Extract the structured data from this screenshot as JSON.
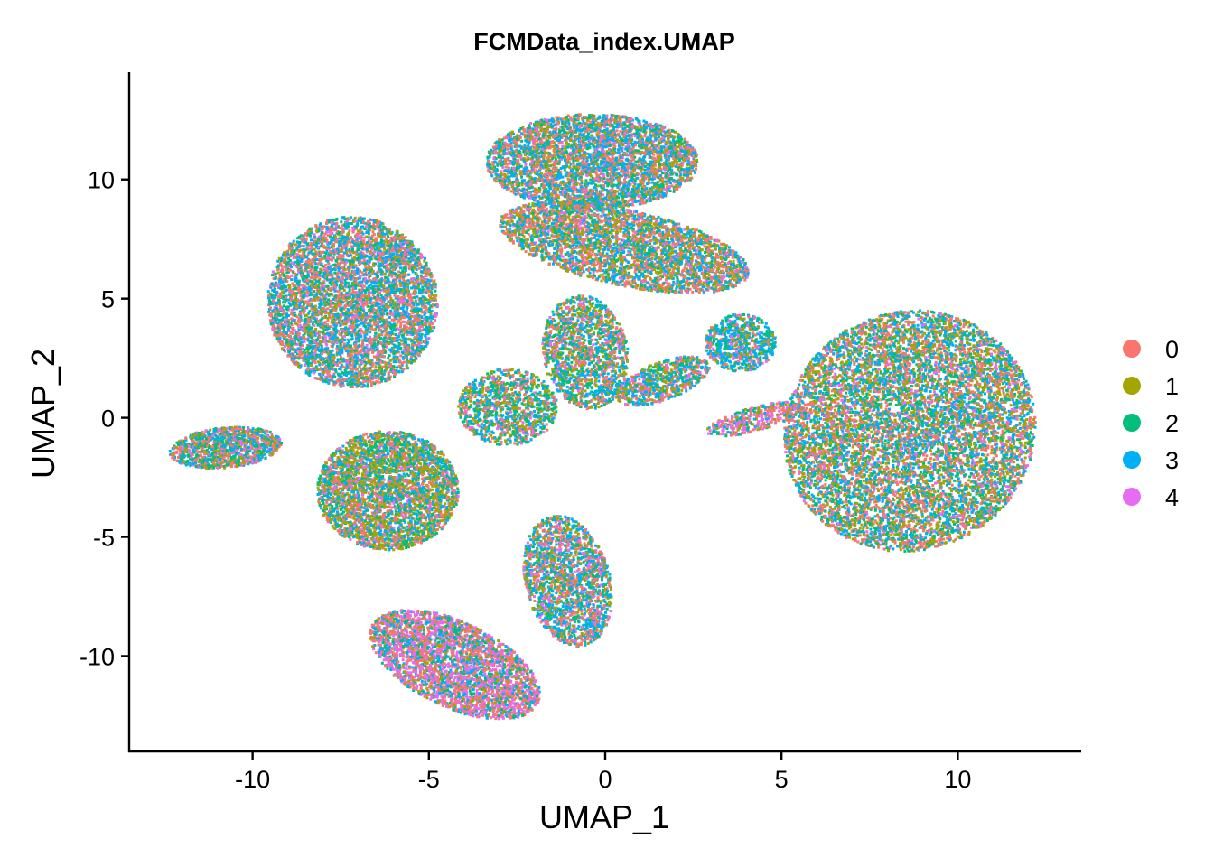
{
  "chart_data": {
    "type": "scatter",
    "title": "FCMData_index.UMAP",
    "xlabel": "UMAP_1",
    "ylabel": "UMAP_2",
    "xlim": [
      -13.5,
      13.5
    ],
    "ylim": [
      -14,
      14.5
    ],
    "x_ticks": [
      -10,
      -5,
      0,
      5,
      10
    ],
    "y_ticks": [
      -10,
      -5,
      0,
      5,
      10
    ],
    "grid": false,
    "legend_position": "right",
    "series": [
      {
        "name": "0",
        "color": "#F8766D"
      },
      {
        "name": "1",
        "color": "#A3A500"
      },
      {
        "name": "2",
        "color": "#00BF7D"
      },
      {
        "name": "3",
        "color": "#00B0F6"
      },
      {
        "name": "4",
        "color": "#E76BF3"
      }
    ],
    "clusters": [
      {
        "x": -7.2,
        "y": 4.9,
        "rx": 2.4,
        "ry": 3.6,
        "rot": 35,
        "weights": [
          0.3,
          0.12,
          0.2,
          0.3,
          0.08
        ],
        "n": 5200
      },
      {
        "x": -10.8,
        "y": -1.2,
        "rx": 1.6,
        "ry": 0.85,
        "rot": 5,
        "weights": [
          0.25,
          0.15,
          0.25,
          0.25,
          0.1
        ],
        "n": 1100
      },
      {
        "x": -6.2,
        "y": -3.0,
        "rx": 2.0,
        "ry": 2.5,
        "rot": 0,
        "weights": [
          0.18,
          0.3,
          0.22,
          0.2,
          0.1
        ],
        "n": 3600
      },
      {
        "x": -4.3,
        "y": -10.3,
        "rx": 2.6,
        "ry": 1.8,
        "rot": -25,
        "weights": [
          0.3,
          0.08,
          0.15,
          0.15,
          0.32
        ],
        "n": 3200
      },
      {
        "x": -1.1,
        "y": -6.8,
        "rx": 1.2,
        "ry": 2.8,
        "rot": 15,
        "weights": [
          0.25,
          0.15,
          0.2,
          0.28,
          0.12
        ],
        "n": 1900
      },
      {
        "x": -0.4,
        "y": 10.8,
        "rx": 3.0,
        "ry": 2.0,
        "rot": 0,
        "weights": [
          0.28,
          0.15,
          0.17,
          0.32,
          0.08
        ],
        "n": 4000
      },
      {
        "x": 0.5,
        "y": 7.2,
        "rx": 3.6,
        "ry": 1.6,
        "rot": -12,
        "weights": [
          0.3,
          0.22,
          0.15,
          0.25,
          0.08
        ],
        "n": 3600
      },
      {
        "x": 1.6,
        "y": 1.6,
        "rx": 1.4,
        "ry": 0.8,
        "rot": 20,
        "weights": [
          0.2,
          0.18,
          0.2,
          0.32,
          0.1
        ],
        "n": 700
      },
      {
        "x": 3.8,
        "y": 3.2,
        "rx": 1.0,
        "ry": 1.2,
        "rot": 0,
        "weights": [
          0.15,
          0.1,
          0.25,
          0.42,
          0.08
        ],
        "n": 700
      },
      {
        "x": 8.6,
        "y": -0.5,
        "rx": 3.6,
        "ry": 5.0,
        "rot": 25,
        "weights": [
          0.25,
          0.22,
          0.2,
          0.25,
          0.08
        ],
        "n": 9000
      },
      {
        "x": 4.2,
        "y": 0.0,
        "rx": 1.4,
        "ry": 0.5,
        "rot": 15,
        "weights": [
          0.25,
          0.1,
          0.15,
          0.15,
          0.35
        ],
        "n": 350
      },
      {
        "x": -2.8,
        "y": 0.5,
        "rx": 1.4,
        "ry": 1.6,
        "rot": 0,
        "weights": [
          0.2,
          0.2,
          0.3,
          0.22,
          0.08
        ],
        "n": 1100
      },
      {
        "x": -0.6,
        "y": 2.8,
        "rx": 1.2,
        "ry": 2.4,
        "rot": 10,
        "weights": [
          0.22,
          0.2,
          0.25,
          0.25,
          0.08
        ],
        "n": 1500
      }
    ]
  }
}
